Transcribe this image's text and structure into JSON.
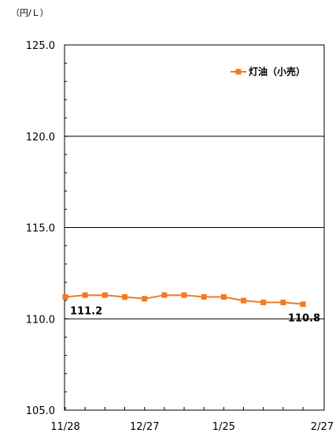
{
  "chart_data": {
    "type": "line",
    "unit_label": "（円/Ｌ）",
    "ylim": [
      105.0,
      125.0
    ],
    "y_ticks": [
      "105.0",
      "110.0",
      "115.0",
      "120.0",
      "125.0"
    ],
    "y_tick_values": [
      105.0,
      110.0,
      115.0,
      120.0,
      125.0
    ],
    "x_tick_labels": [
      "11/28",
      "12/27",
      "1/25",
      "2/27"
    ],
    "x_tick_indices": [
      0,
      4,
      8,
      12
    ],
    "grid": true,
    "legend_position": "top-right",
    "colors": {
      "series": "#f47920"
    },
    "series": [
      {
        "name": "灯油（小売）",
        "values": [
          111.2,
          111.3,
          111.3,
          111.2,
          111.1,
          111.3,
          111.3,
          111.2,
          111.2,
          111.0,
          110.9,
          110.9,
          110.8
        ]
      }
    ],
    "data_labels": [
      {
        "index": 0,
        "text": "111.2"
      },
      {
        "index": 12,
        "text": "110.8"
      }
    ]
  }
}
